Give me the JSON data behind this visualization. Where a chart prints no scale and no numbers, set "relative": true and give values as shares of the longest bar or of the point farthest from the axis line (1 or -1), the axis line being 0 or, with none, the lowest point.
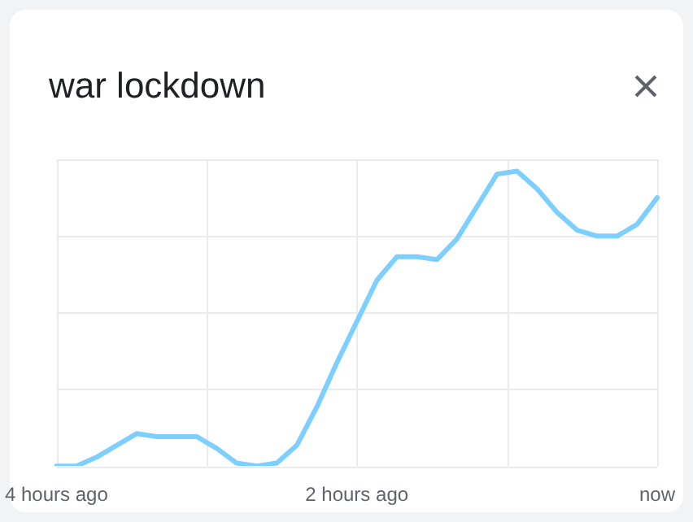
{
  "chart_data": {
    "type": "line",
    "title": "war lockdown",
    "relative": true,
    "grid": true,
    "legend": false,
    "marker": "none",
    "line_style": "solid",
    "categories": [
      "4 hours ago",
      null,
      null,
      null,
      null,
      null,
      null,
      null,
      null,
      null,
      null,
      null,
      null,
      null,
      null,
      "2 hours ago",
      null,
      null,
      null,
      null,
      null,
      null,
      null,
      null,
      null,
      null,
      null,
      null,
      null,
      null,
      "now"
    ],
    "series": [
      {
        "color": "#7dcfff",
        "values": [
          0,
          0,
          0.03,
          0.07,
          0.11,
          0.1,
          0.1,
          0.1,
          0.06,
          0.01,
          0,
          0.01,
          0.07,
          0.2,
          0.35,
          0.49,
          0.63,
          0.71,
          0.71,
          0.7,
          0.77,
          0.88,
          0.99,
          1,
          0.94,
          0.86,
          0.8,
          0.78,
          0.78,
          0.82,
          0.91
        ]
      }
    ]
  }
}
